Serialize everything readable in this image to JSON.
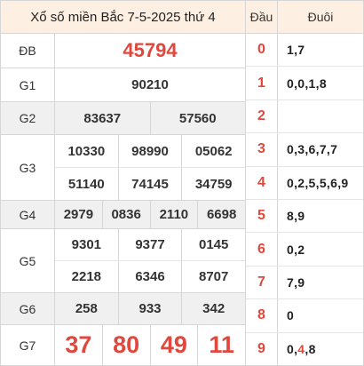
{
  "title": "Xổ số miền Bắc 7-5-2025 thứ 4",
  "prizes": {
    "db": {
      "label": "ĐB",
      "numbers": [
        "45794"
      ]
    },
    "g1": {
      "label": "G1",
      "numbers": [
        "90210"
      ]
    },
    "g2": {
      "label": "G2",
      "numbers": [
        "83637",
        "57560"
      ]
    },
    "g3": {
      "label": "G3",
      "numbers": [
        "10330",
        "98990",
        "05062",
        "51140",
        "74145",
        "34759"
      ]
    },
    "g4": {
      "label": "G4",
      "numbers": [
        "2979",
        "0836",
        "2110",
        "6698"
      ]
    },
    "g5": {
      "label": "G5",
      "numbers": [
        "9301",
        "9377",
        "0145",
        "2218",
        "6346",
        "8707"
      ]
    },
    "g6": {
      "label": "G6",
      "numbers": [
        "258",
        "933",
        "342"
      ]
    },
    "g7": {
      "label": "G7",
      "numbers": [
        "37",
        "80",
        "49",
        "11"
      ]
    }
  },
  "loto": {
    "head_label": "Đầu",
    "tail_label": "Đuôi",
    "rows": [
      {
        "head": "0",
        "tail": "1,7"
      },
      {
        "head": "1",
        "tail": "0,0,1,8"
      },
      {
        "head": "2",
        "tail": ""
      },
      {
        "head": "3",
        "tail": "0,3,6,7,7"
      },
      {
        "head": "4",
        "tail": "0,2,5,5,6,9"
      },
      {
        "head": "5",
        "tail": "8,9"
      },
      {
        "head": "6",
        "tail": "0,2"
      },
      {
        "head": "7",
        "tail": "7,9"
      },
      {
        "head": "8",
        "tail": "0"
      },
      {
        "head": "9",
        "tail_parts": [
          "0,",
          "4",
          ",8"
        ],
        "tail_highlight_index": 1
      }
    ]
  },
  "colors": {
    "accent_red": "#e0483d",
    "header_bg": "#fdf0e3",
    "shade_bg": "#f0f0f0"
  }
}
